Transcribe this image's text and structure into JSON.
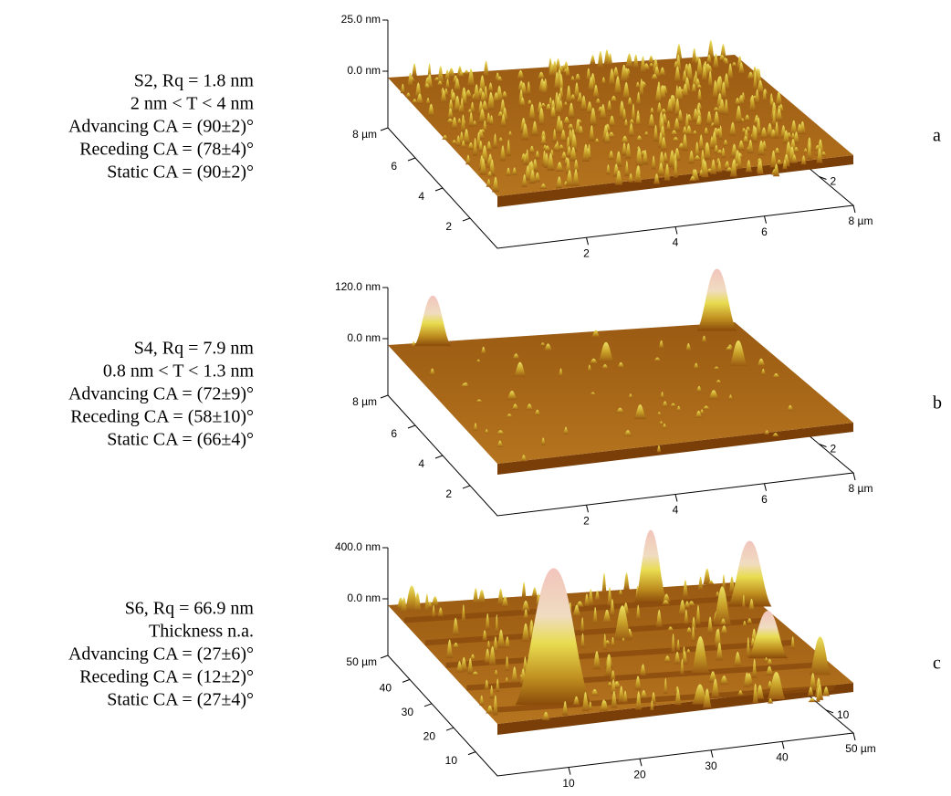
{
  "panels": [
    {
      "label": "a",
      "lines": [
        "S2, Rq = 1.8 nm",
        "2 nm < T < 4 nm",
        "Advancing CA = (90±2)°",
        "Receding CA = (78±4)°",
        "Static CA = (90±2)°"
      ],
      "z_labels": [
        "25.0 nm",
        "0.0 nm"
      ],
      "y_labels": [
        "8 µm",
        "6",
        "4",
        "2"
      ],
      "x_labels": [
        "2",
        "4",
        "6",
        "8 µm"
      ],
      "r_labels": [
        "2"
      ]
    },
    {
      "label": "b",
      "lines": [
        "S4, Rq = 7.9 nm",
        "0.8 nm < T < 1.3 nm",
        "Advancing CA = (72±9)°",
        "Receding CA = (58±10)°",
        "Static CA = (66±4)°"
      ],
      "z_labels": [
        "120.0 nm",
        "0.0 nm"
      ],
      "y_labels": [
        "8 µm",
        "6",
        "4",
        "2"
      ],
      "x_labels": [
        "2",
        "4",
        "6",
        "8 µm"
      ],
      "r_labels": [
        "2"
      ]
    },
    {
      "label": "c",
      "lines": [
        "S6, Rq = 66.9 nm",
        "Thickness n.a.",
        "Advancing CA = (27±6)°",
        "Receding CA = (12±2)°",
        "Static CA = (27±4)°"
      ],
      "z_labels": [
        "400.0 nm",
        "0.0 nm"
      ],
      "y_labels": [
        "50 µm",
        "40",
        "30",
        "20",
        "10"
      ],
      "x_labels": [
        "10",
        "20",
        "30",
        "40",
        "50 µm"
      ],
      "r_labels": [
        "10"
      ]
    }
  ]
}
